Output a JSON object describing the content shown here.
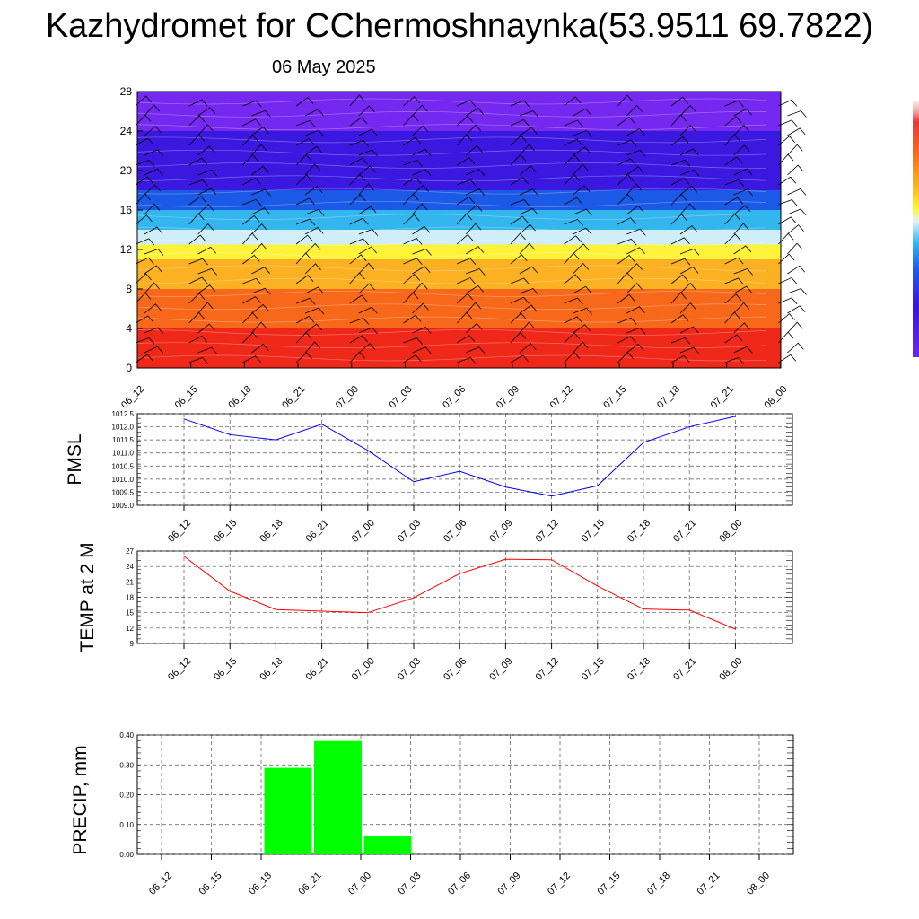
{
  "header": {
    "title": "Kazhydromet for CChermoshnaynka(53.9511 69.7822)",
    "date": "06 May 2025"
  },
  "colors": {
    "pmsl_line": "#0000ff",
    "temp_line": "#ff0000",
    "precip_bar": "#00ff00"
  },
  "chart_data": [
    {
      "type": "heatmap",
      "title": "",
      "xlabel": "",
      "ylabel": "",
      "categories": [
        "06_12",
        "06_15",
        "06_18",
        "06_21",
        "07_00",
        "07_03",
        "07_06",
        "07_09",
        "07_12",
        "07_15",
        "07_18",
        "07_21",
        "08_00"
      ],
      "yticks": [
        0,
        4,
        8,
        12,
        16,
        20,
        24,
        28
      ],
      "ylim": [
        0,
        28
      ],
      "color_bands": [
        {
          "from": 0,
          "to": 4,
          "color": "#f0281a"
        },
        {
          "from": 4,
          "to": 8,
          "color": "#f8681a"
        },
        {
          "from": 8,
          "to": 11,
          "color": "#fbb121"
        },
        {
          "from": 11,
          "to": 12.5,
          "color": "#fff33a"
        },
        {
          "from": 12.5,
          "to": 14,
          "color": "#cfeef8"
        },
        {
          "from": 14,
          "to": 16,
          "color": "#33b6ee"
        },
        {
          "from": 16,
          "to": 18,
          "color": "#1b5ae6"
        },
        {
          "from": 18,
          "to": 24,
          "color": "#3b18e0"
        },
        {
          "from": 24,
          "to": 28,
          "color": "#7428f0"
        }
      ],
      "wind_barbs": true
    },
    {
      "type": "line",
      "title": "",
      "xlabel": "",
      "ylabel": "PMSL",
      "categories": [
        "06_12",
        "06_15",
        "06_18",
        "06_21",
        "07_00",
        "07_03",
        "07_06",
        "07_09",
        "07_12",
        "07_15",
        "07_18",
        "07_21",
        "08_00"
      ],
      "series": [
        {
          "values": [
            1012.3,
            1011.7,
            1011.5,
            1012.1,
            1011.1,
            1009.9,
            1010.3,
            1009.7,
            1009.35,
            1009.75,
            1011.4,
            1012.0,
            1012.4
          ]
        }
      ],
      "ylim": [
        1009.0,
        1012.5
      ],
      "yticks": [
        "1009.0",
        "1009.5",
        "1010.0",
        "1010.5",
        "1011.0",
        "1011.5",
        "1012.0",
        "1012.5"
      ],
      "grid": true
    },
    {
      "type": "line",
      "title": "",
      "xlabel": "",
      "ylabel": "TEMP at 2 M",
      "categories": [
        "06_12",
        "06_15",
        "06_18",
        "06_21",
        "07_00",
        "07_03",
        "07_06",
        "07_09",
        "07_12",
        "07_15",
        "07_18",
        "07_21",
        "08_00"
      ],
      "series": [
        {
          "values": [
            26.0,
            19.2,
            15.6,
            15.3,
            15.0,
            17.9,
            22.6,
            25.4,
            25.3,
            20.2,
            15.7,
            15.5,
            11.8
          ]
        }
      ],
      "ylim": [
        9,
        27
      ],
      "yticks": [
        "9",
        "12",
        "15",
        "18",
        "21",
        "24",
        "27"
      ],
      "grid": true
    },
    {
      "type": "bar",
      "title": "",
      "xlabel": "",
      "ylabel": "PRECIP, mm",
      "categories": [
        "06_12",
        "06_15",
        "06_18",
        "06_21",
        "07_00",
        "07_03",
        "07_06",
        "07_09",
        "07_12",
        "07_15",
        "07_18",
        "07_21",
        "08_00"
      ],
      "series": [
        {
          "values": [
            0,
            0,
            0,
            0.29,
            0.38,
            0.06,
            0,
            0,
            0,
            0,
            0,
            0,
            0
          ]
        }
      ],
      "ylim": [
        0,
        0.4
      ],
      "yticks": [
        "0.00",
        "0.10",
        "0.20",
        "0.30",
        "0.40"
      ],
      "grid": true
    }
  ]
}
